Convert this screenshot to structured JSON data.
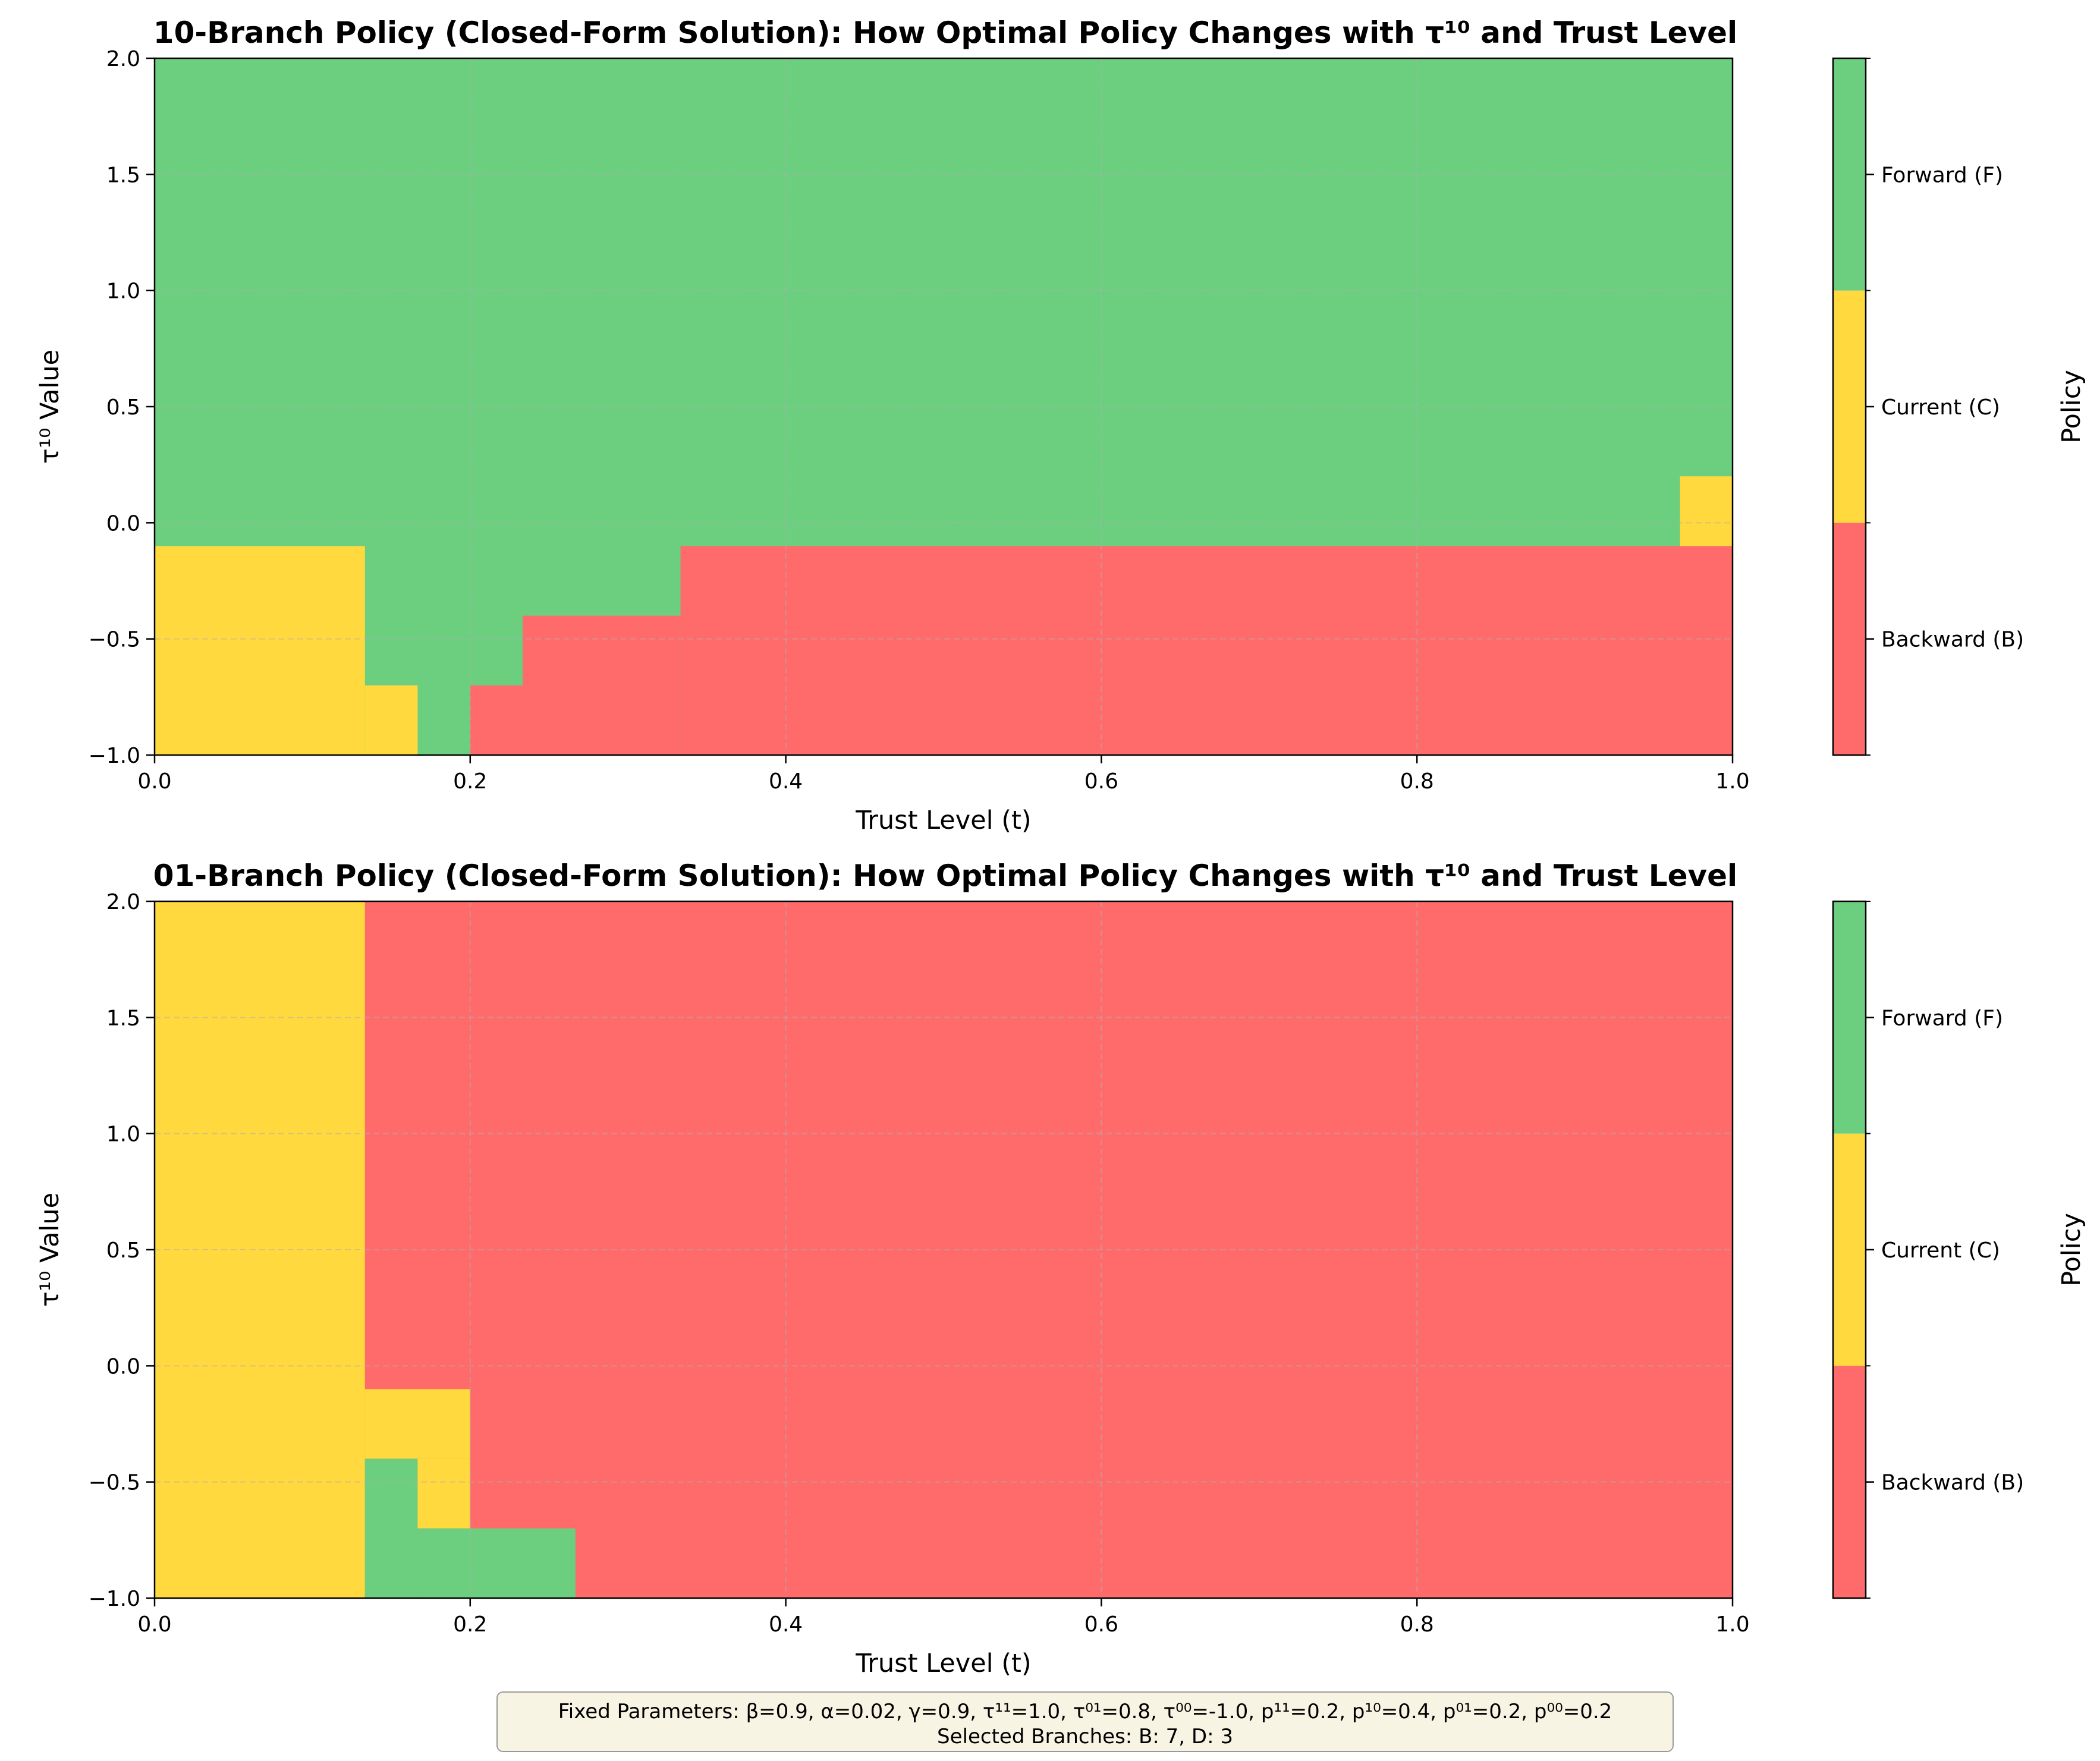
{
  "chart_data": [
    {
      "type": "heatmap",
      "title": "10-Branch Policy (Closed-Form Solution): How Optimal Policy Changes with τ¹⁰ and Trust Level",
      "xlabel": "Trust Level (t)",
      "ylabel": "τ¹⁰ Value",
      "xlim": [
        0.0,
        1.0
      ],
      "ylim": [
        -1.0,
        2.0
      ],
      "xticks": [
        "0.0",
        "0.2",
        "0.4",
        "0.6",
        "0.8",
        "1.0"
      ],
      "yticks": [
        "−1.0",
        "−0.5",
        "0.0",
        "0.5",
        "1.0",
        "1.5",
        "2.0"
      ],
      "grid": true,
      "colorbar": {
        "label": "Policy",
        "categories": [
          {
            "label": "Backward (B)",
            "color": "#ff6b6b"
          },
          {
            "label": "Current (C)",
            "color": "#ffd93d"
          },
          {
            "label": "Forward (F)",
            "color": "#6bcf7f"
          }
        ]
      },
      "regions": [
        {
          "policy": "Forward (F)",
          "x": [
            0.0,
            1.0
          ],
          "y": [
            -1.0,
            2.0
          ]
        },
        {
          "policy": "Current (C)",
          "x": [
            0.0,
            0.1333
          ],
          "y": [
            -1.0,
            -0.1
          ]
        },
        {
          "policy": "Current (C)",
          "x": [
            0.1333,
            0.1667
          ],
          "y": [
            -1.0,
            -0.7
          ]
        },
        {
          "policy": "Backward (B)",
          "x": [
            0.2,
            0.2333
          ],
          "y": [
            -1.0,
            -0.7
          ]
        },
        {
          "policy": "Backward (B)",
          "x": [
            0.2333,
            0.3333
          ],
          "y": [
            -1.0,
            -0.4
          ]
        },
        {
          "policy": "Backward (B)",
          "x": [
            0.3333,
            1.0
          ],
          "y": [
            -1.0,
            -0.1
          ]
        },
        {
          "policy": "Current (C)",
          "x": [
            0.9667,
            1.0
          ],
          "y": [
            -0.1,
            0.2
          ]
        }
      ]
    },
    {
      "type": "heatmap",
      "title": "01-Branch Policy (Closed-Form Solution): How Optimal Policy Changes with τ¹⁰ and Trust Level",
      "xlabel": "Trust Level (t)",
      "ylabel": "τ¹⁰ Value",
      "xlim": [
        0.0,
        1.0
      ],
      "ylim": [
        -1.0,
        2.0
      ],
      "xticks": [
        "0.0",
        "0.2",
        "0.4",
        "0.6",
        "0.8",
        "1.0"
      ],
      "yticks": [
        "−1.0",
        "−0.5",
        "0.0",
        "0.5",
        "1.0",
        "1.5",
        "2.0"
      ],
      "grid": true,
      "colorbar": {
        "label": "Policy",
        "categories": [
          {
            "label": "Backward (B)",
            "color": "#ff6b6b"
          },
          {
            "label": "Current (C)",
            "color": "#ffd93d"
          },
          {
            "label": "Forward (F)",
            "color": "#6bcf7f"
          }
        ]
      },
      "regions": [
        {
          "policy": "Backward (B)",
          "x": [
            0.0,
            1.0
          ],
          "y": [
            -1.0,
            2.0
          ]
        },
        {
          "policy": "Current (C)",
          "x": [
            0.0,
            0.1333
          ],
          "y": [
            -1.0,
            2.0
          ]
        },
        {
          "policy": "Current (C)",
          "x": [
            0.1333,
            0.2
          ],
          "y": [
            -0.4,
            -0.1
          ]
        },
        {
          "policy": "Forward (F)",
          "x": [
            0.1333,
            0.1667
          ],
          "y": [
            -1.0,
            -0.4
          ]
        },
        {
          "policy": "Current (C)",
          "x": [
            0.1667,
            0.2
          ],
          "y": [
            -0.7,
            -0.4
          ]
        },
        {
          "policy": "Forward (F)",
          "x": [
            0.1667,
            0.2667
          ],
          "y": [
            -1.0,
            -0.7
          ]
        }
      ]
    }
  ],
  "footer": {
    "line1": "Fixed Parameters: β=0.9, α=0.02, γ=0.9, τ¹¹=1.0, τ⁰¹=0.8, τ⁰⁰=-1.0, p¹¹=0.2, p¹⁰=0.4, p⁰¹=0.2, p⁰⁰=0.2",
    "line2": "Selected Branches: B: 7, D: 3"
  }
}
